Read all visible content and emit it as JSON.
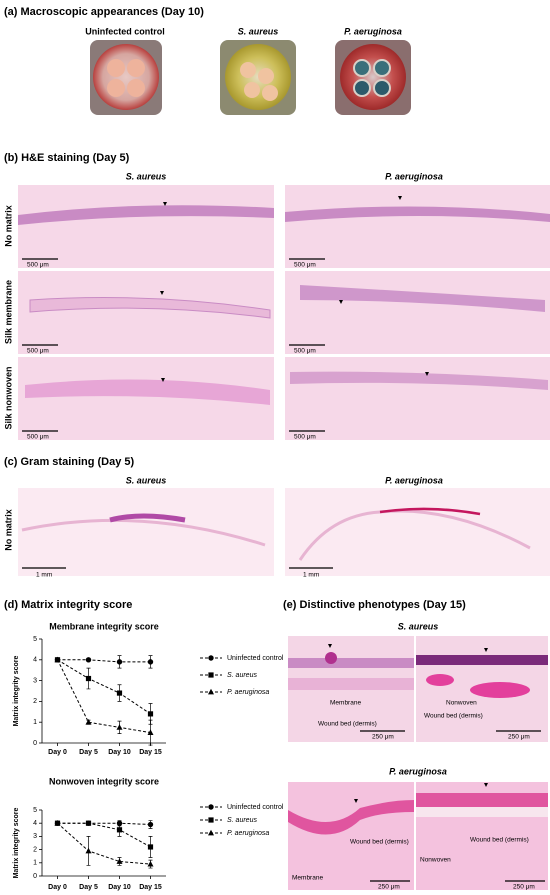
{
  "panel_a": {
    "title": "(a) Macroscopic appearances (Day 10)",
    "labels": [
      "Uninfected control",
      "S. aureus",
      "P. aeruginosa"
    ]
  },
  "panel_b": {
    "title": "(b) H&E staining (Day 5)",
    "columns": [
      "S. aureus",
      "P. aeruginosa"
    ],
    "rows": [
      "No matrix",
      "Silk membrane",
      "Silk nonwoven"
    ],
    "scale_labels": [
      "500 μm",
      "500 μm",
      "500 μm",
      "500 μm",
      "500 μm",
      "500 μm"
    ]
  },
  "panel_c": {
    "title": "(c) Gram staining (Day 5)",
    "columns": [
      "S. aureus",
      "P. aeruginosa"
    ],
    "rows": [
      "No matrix"
    ],
    "scale_labels": [
      "1 mm",
      "1 mm"
    ]
  },
  "panel_d": {
    "title": "(d) Matrix integrity score"
  },
  "chart_data": [
    {
      "type": "line",
      "title": "Membrane integrity score",
      "ylabel": "Matrix integrity score",
      "categories": [
        "Day 0",
        "Day 5",
        "Day 10",
        "Day 15"
      ],
      "ylim": [
        0,
        5
      ],
      "yticks": [
        0,
        1,
        2,
        3,
        4,
        5
      ],
      "legend": "right",
      "series": [
        {
          "name": "Uninfected control",
          "color": "#000000",
          "marker": "circle",
          "values": [
            4,
            4,
            3.9,
            3.9
          ],
          "errors": [
            0,
            0,
            0.3,
            0.3
          ]
        },
        {
          "name": "S. aureus",
          "color": "#000000",
          "marker": "square",
          "values": [
            4,
            3.1,
            2.4,
            1.4
          ],
          "errors": [
            0,
            0.5,
            0.4,
            0.5
          ]
        },
        {
          "name": "P. aeruginosa",
          "color": "#000000",
          "marker": "triangle",
          "values": [
            4,
            1.0,
            0.75,
            0.5
          ],
          "errors": [
            0,
            0.1,
            0.3,
            0.6
          ]
        }
      ]
    },
    {
      "type": "line",
      "title": "Nonwoven integrity score",
      "ylabel": "Matrix integrity score",
      "categories": [
        "Day 0",
        "Day 5",
        "Day 10",
        "Day 15"
      ],
      "ylim": [
        0,
        5
      ],
      "yticks": [
        0,
        1,
        2,
        3,
        4,
        5
      ],
      "legend": "right",
      "series": [
        {
          "name": "Uninfected control",
          "color": "#000000",
          "marker": "circle",
          "values": [
            4,
            4,
            4,
            3.9
          ],
          "errors": [
            0,
            0,
            0.2,
            0.3
          ]
        },
        {
          "name": "S. aureus",
          "color": "#000000",
          "marker": "square",
          "values": [
            4,
            4,
            3.5,
            2.2
          ],
          "errors": [
            0,
            0,
            0.5,
            0.8
          ]
        },
        {
          "name": "P. aeruginosa",
          "color": "#000000",
          "marker": "triangle",
          "values": [
            4,
            1.9,
            1.1,
            0.9
          ],
          "errors": [
            0,
            1.1,
            0.3,
            0.3
          ]
        }
      ]
    }
  ],
  "panel_e": {
    "title": "(e) Distinctive phenotypes (Day 15)",
    "sections": [
      {
        "title": "S. aureus",
        "annotations": [
          "Membrane",
          "Wound bed (dermis)",
          "250 μm",
          "Nonwoven",
          "Wound bed (dermis)",
          "250 μm"
        ]
      },
      {
        "title": "P. aeruginosa",
        "annotations": [
          "Wound bed (dermis)",
          "Membrane",
          "250 μm",
          "Wound bed (dermis)",
          "Nonwoven",
          "250 μm"
        ]
      }
    ]
  }
}
